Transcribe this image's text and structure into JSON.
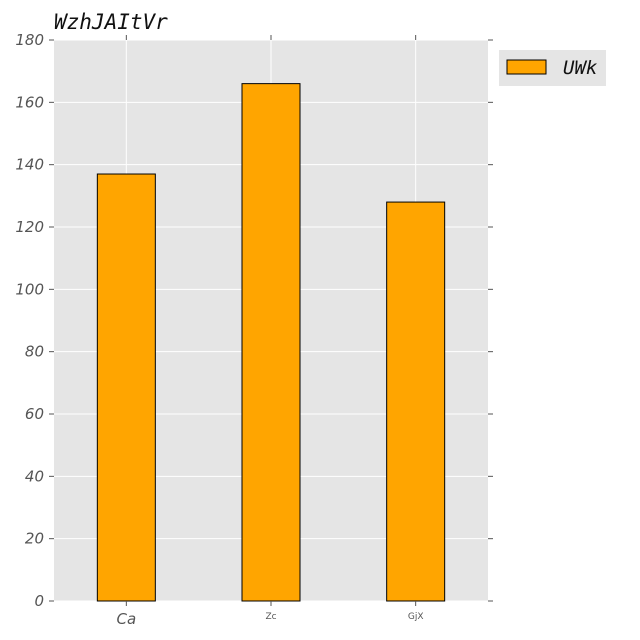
{
  "chart_data": {
    "type": "bar",
    "title": "WzhJAItVr",
    "xlabel": "",
    "ylabel": "",
    "categories": [
      "Ca",
      "Zc",
      "GjX"
    ],
    "series": [
      {
        "name": "UWk",
        "values": [
          137,
          166,
          128
        ],
        "color": "#ffa500"
      }
    ],
    "ylim": [
      0,
      180
    ],
    "yticks": [
      0,
      20,
      40,
      60,
      80,
      100,
      120,
      140,
      160,
      180
    ],
    "grid": true,
    "legend_position": "outside-top-right",
    "colors": {
      "plot_background": "#e5e5e5",
      "grid": "#ffffff",
      "bar_edge": "#000000"
    }
  }
}
